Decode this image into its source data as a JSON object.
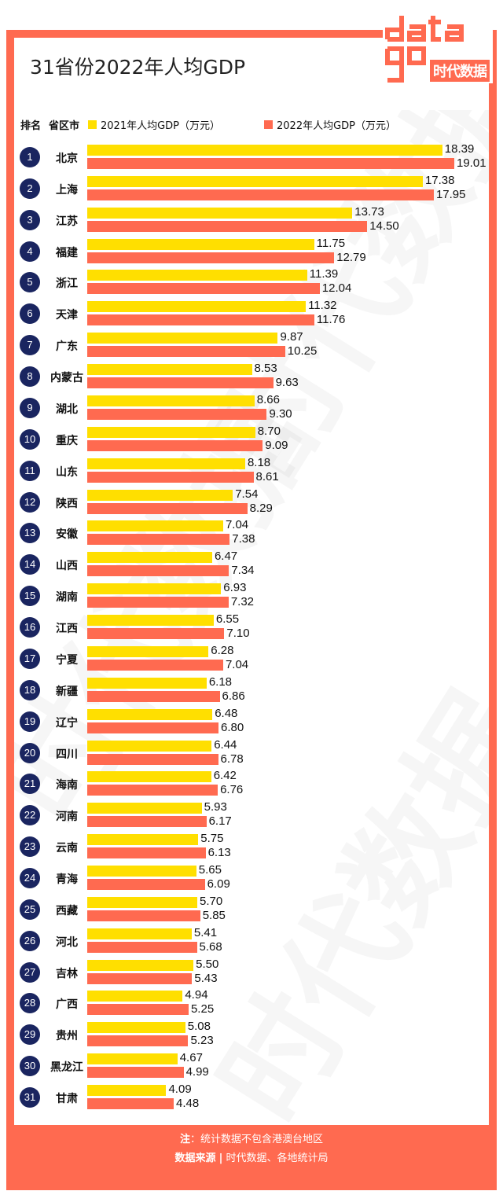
{
  "title": "31省份2022年人均GDP",
  "logo": {
    "word": "data",
    "sub": "时代数据"
  },
  "watermark_text": "时代数据",
  "header": {
    "rank_label": "排名",
    "province_label": "省区市",
    "legend_2021": "2021年人均GDP（万元）",
    "legend_2022": "2022年人均GDP（万元）"
  },
  "colors": {
    "frame": "#ff6a50",
    "bar_2021": "#ffdf00",
    "bar_2022": "#ff6a50",
    "rank_badge": "#1a2560"
  },
  "chart_data": {
    "type": "bar",
    "orientation": "horizontal",
    "categories": [
      "北京",
      "上海",
      "江苏",
      "福建",
      "浙江",
      "天津",
      "广东",
      "内蒙古",
      "湖北",
      "重庆",
      "山东",
      "陕西",
      "安徽",
      "山西",
      "湖南",
      "江西",
      "宁夏",
      "新疆",
      "辽宁",
      "四川",
      "海南",
      "河南",
      "云南",
      "青海",
      "西藏",
      "河北",
      "吉林",
      "广西",
      "贵州",
      "黑龙江",
      "甘肃"
    ],
    "ranks": [
      "1",
      "2",
      "3",
      "4",
      "5",
      "6",
      "7",
      "8",
      "9",
      "10",
      "11",
      "12",
      "13",
      "14",
      "15",
      "16",
      "17",
      "18",
      "19",
      "20",
      "21",
      "22",
      "23",
      "24",
      "25",
      "26",
      "27",
      "28",
      "29",
      "30",
      "31"
    ],
    "series": [
      {
        "name": "2021年人均GDP（万元）",
        "values": [
          "18.39",
          "17.38",
          "13.73",
          "11.75",
          "11.39",
          "11.32",
          "9.87",
          "8.53",
          "8.66",
          "8.70",
          "8.18",
          "7.54",
          "7.04",
          "6.47",
          "6.93",
          "6.55",
          "6.28",
          "6.18",
          "6.48",
          "6.44",
          "6.42",
          "5.93",
          "5.75",
          "5.65",
          "5.70",
          "5.41",
          "5.50",
          "4.94",
          "5.08",
          "4.67",
          "4.09"
        ]
      },
      {
        "name": "2022年人均GDP（万元）",
        "values": [
          "19.01",
          "17.95",
          "14.50",
          "12.79",
          "12.04",
          "11.76",
          "10.25",
          "9.63",
          "9.30",
          "9.09",
          "8.61",
          "8.29",
          "7.38",
          "7.34",
          "7.32",
          "7.10",
          "7.04",
          "6.86",
          "6.80",
          "6.78",
          "6.76",
          "6.17",
          "6.13",
          "6.09",
          "5.85",
          "5.68",
          "5.43",
          "5.25",
          "5.23",
          "4.99",
          "4.48"
        ]
      }
    ],
    "xlim": [
      0,
      19.01
    ]
  },
  "footer": {
    "note_label": "注",
    "note_text": "：统计数据不包含港澳台地区",
    "source_label": "数据来源",
    "source_sep": "|",
    "source_text": "时代数据、各地统计局"
  }
}
